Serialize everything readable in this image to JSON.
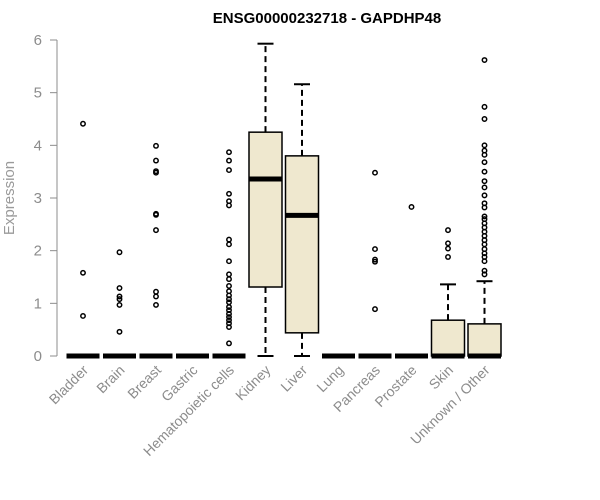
{
  "chart_data": {
    "type": "boxplot",
    "title": "ENSG00000232718 - GAPDHP48",
    "ylabel": "Expression",
    "xlabel": "",
    "ylim": [
      0,
      6
    ],
    "yticks": [
      0,
      1,
      2,
      3,
      4,
      5,
      6
    ],
    "grid": false,
    "box_fill": "#efe8cf",
    "stroke_color": "#000000",
    "axis_text_color": "#8c8c8c",
    "categories": [
      "Bladder",
      "Brain",
      "Breast",
      "Gastric",
      "Hematopoietic cells",
      "Kidney",
      "Liver",
      "Lung",
      "Pancreas",
      "Prostate",
      "Skin",
      "Unknown / Other"
    ],
    "boxes": [
      {
        "q1": 0,
        "median": 0,
        "q3": 0,
        "whisker_low": 0,
        "whisker_high": 0,
        "outliers": [
          0.76,
          1.58,
          4.41
        ]
      },
      {
        "q1": 0,
        "median": 0,
        "q3": 0,
        "whisker_low": 0,
        "whisker_high": 0,
        "outliers": [
          0.46,
          0.97,
          1.08,
          1.13,
          1.29,
          1.97
        ]
      },
      {
        "q1": 0,
        "median": 0,
        "q3": 0,
        "whisker_low": 0,
        "whisker_high": 0,
        "outliers": [
          0.97,
          1.13,
          1.22,
          2.39,
          2.68,
          2.7,
          3.48,
          3.51,
          3.71,
          3.99
        ]
      },
      {
        "q1": 0,
        "median": 0,
        "q3": 0,
        "whisker_low": 0,
        "whisker_high": 0,
        "outliers": []
      },
      {
        "q1": 0,
        "median": 0,
        "q3": 0,
        "whisker_low": 0,
        "whisker_high": 0,
        "outliers": [
          0.24,
          0.55,
          0.62,
          0.68,
          0.74,
          0.8,
          0.87,
          0.93,
          1.02,
          1.08,
          1.15,
          1.23,
          1.33,
          1.46,
          1.55,
          1.8,
          2.12,
          2.21,
          2.86,
          2.94,
          3.08,
          3.53,
          3.71,
          3.87
        ]
      },
      {
        "q1": 1.31,
        "median": 3.36,
        "q3": 4.25,
        "whisker_low": 0,
        "whisker_high": 5.93,
        "outliers": []
      },
      {
        "q1": 0.44,
        "median": 2.67,
        "q3": 3.8,
        "whisker_low": 0,
        "whisker_high": 5.16,
        "outliers": []
      },
      {
        "q1": 0,
        "median": 0,
        "q3": 0,
        "whisker_low": 0,
        "whisker_high": 0,
        "outliers": []
      },
      {
        "q1": 0,
        "median": 0,
        "q3": 0,
        "whisker_low": 0,
        "whisker_high": 0,
        "outliers": [
          0.89,
          1.79,
          1.83,
          2.03,
          3.48
        ]
      },
      {
        "q1": 0,
        "median": 0,
        "q3": 0,
        "whisker_low": 0,
        "whisker_high": 0,
        "outliers": [
          2.83
        ]
      },
      {
        "q1": 0,
        "median": 0,
        "q3": 0.68,
        "whisker_low": 0,
        "whisker_high": 1.36,
        "outliers": [
          1.88,
          2.04,
          2.14,
          2.39
        ]
      },
      {
        "q1": 0,
        "median": 0,
        "q3": 0.61,
        "whisker_low": 0,
        "whisker_high": 1.42,
        "outliers": [
          1.55,
          1.62,
          1.8,
          1.88,
          1.95,
          2.03,
          2.12,
          2.2,
          2.28,
          2.36,
          2.44,
          2.52,
          2.6,
          2.65,
          2.82,
          2.9,
          3.05,
          3.2,
          3.32,
          3.5,
          3.68,
          3.82,
          3.9,
          4.0,
          4.5,
          4.73,
          5.62
        ]
      }
    ]
  }
}
